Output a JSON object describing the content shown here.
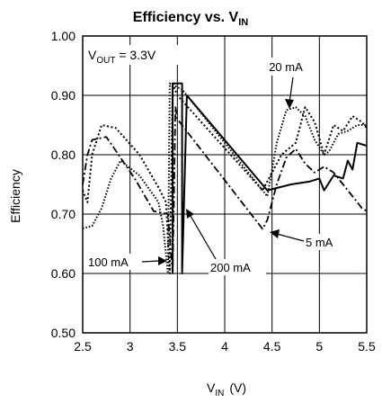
{
  "chart_data": {
    "type": "line",
    "title": "Efficiency vs. V",
    "title_sub": "IN",
    "xlabel_main": "V",
    "xlabel_sub": "IN",
    "xlabel_unit": "(V)",
    "ylabel": "Efficiency",
    "xlim": [
      2.5,
      5.5
    ],
    "ylim": [
      0.5,
      1.0
    ],
    "xticks": [
      "2.5",
      "3",
      "3.5",
      "4",
      "4.5",
      "5",
      "5.5"
    ],
    "yticks": [
      "0.50",
      "0.60",
      "0.70",
      "0.80",
      "0.90",
      "1.00"
    ],
    "grid": true,
    "vout_main": "V",
    "vout_sub": "OUT",
    "vout_rest": " = 3.3V",
    "series": [
      {
        "name": "5 mA",
        "style": "solid",
        "points": [
          [
            3.45,
            0.6
          ],
          [
            3.45,
            0.92
          ],
          [
            3.55,
            0.92
          ],
          [
            3.55,
            0.6
          ],
          [
            3.6,
            0.9
          ],
          [
            4.45,
            0.74
          ],
          [
            4.7,
            0.75
          ],
          [
            4.9,
            0.755
          ],
          [
            5.0,
            0.76
          ],
          [
            5.05,
            0.74
          ],
          [
            5.15,
            0.765
          ],
          [
            5.25,
            0.76
          ],
          [
            5.3,
            0.79
          ],
          [
            5.35,
            0.775
          ],
          [
            5.4,
            0.82
          ],
          [
            5.5,
            0.815
          ]
        ]
      },
      {
        "name": "20 mA",
        "style": "dense-dot",
        "points": [
          [
            2.5,
            0.676
          ],
          [
            2.6,
            0.68
          ],
          [
            2.7,
            0.71
          ],
          [
            2.8,
            0.76
          ],
          [
            2.9,
            0.79
          ],
          [
            3.1,
            0.765
          ],
          [
            3.3,
            0.72
          ],
          [
            3.35,
            0.68
          ],
          [
            3.4,
            0.6
          ],
          [
            3.42,
            0.92
          ],
          [
            3.55,
            0.91
          ],
          [
            4.45,
            0.73
          ],
          [
            4.55,
            0.82
          ],
          [
            4.65,
            0.875
          ],
          [
            4.75,
            0.88
          ],
          [
            4.85,
            0.865
          ],
          [
            4.95,
            0.825
          ],
          [
            5.05,
            0.8
          ],
          [
            5.1,
            0.805
          ],
          [
            5.2,
            0.835
          ],
          [
            5.3,
            0.84
          ],
          [
            5.4,
            0.85
          ],
          [
            5.5,
            0.85
          ]
        ]
      },
      {
        "name": "100 mA",
        "style": "short-dot",
        "points": [
          [
            2.5,
            0.74
          ],
          [
            2.55,
            0.72
          ],
          [
            2.6,
            0.8
          ],
          [
            2.7,
            0.85
          ],
          [
            2.85,
            0.845
          ],
          [
            3.1,
            0.8
          ],
          [
            3.3,
            0.745
          ],
          [
            3.38,
            0.72
          ],
          [
            3.42,
            0.6
          ],
          [
            3.45,
            0.92
          ],
          [
            3.5,
            0.9
          ],
          [
            4.4,
            0.74
          ],
          [
            4.5,
            0.77
          ],
          [
            4.6,
            0.8
          ],
          [
            4.75,
            0.82
          ],
          [
            4.85,
            0.88
          ],
          [
            4.95,
            0.855
          ],
          [
            5.05,
            0.8
          ],
          [
            5.15,
            0.85
          ],
          [
            5.25,
            0.84
          ],
          [
            5.35,
            0.865
          ],
          [
            5.45,
            0.855
          ],
          [
            5.5,
            0.845
          ]
        ]
      },
      {
        "name": "200 mA",
        "style": "dash-dot",
        "points": [
          [
            2.5,
            0.75
          ],
          [
            2.55,
            0.8
          ],
          [
            2.6,
            0.825
          ],
          [
            2.75,
            0.83
          ],
          [
            3.05,
            0.76
          ],
          [
            3.25,
            0.705
          ],
          [
            3.4,
            0.7
          ],
          [
            3.45,
            0.6
          ],
          [
            3.48,
            0.88
          ],
          [
            3.5,
            0.86
          ],
          [
            4.4,
            0.675
          ],
          [
            4.45,
            0.69
          ],
          [
            4.55,
            0.75
          ],
          [
            4.65,
            0.795
          ],
          [
            4.75,
            0.81
          ],
          [
            4.85,
            0.785
          ],
          [
            4.95,
            0.77
          ],
          [
            5.05,
            0.78
          ],
          [
            5.15,
            0.77
          ],
          [
            5.25,
            0.75
          ],
          [
            5.35,
            0.73
          ],
          [
            5.45,
            0.71
          ],
          [
            5.5,
            0.705
          ]
        ]
      }
    ],
    "annotations": [
      {
        "text": "20 mA"
      },
      {
        "text": "5 mA"
      },
      {
        "text": "100 mA"
      },
      {
        "text": "200 mA"
      }
    ]
  }
}
